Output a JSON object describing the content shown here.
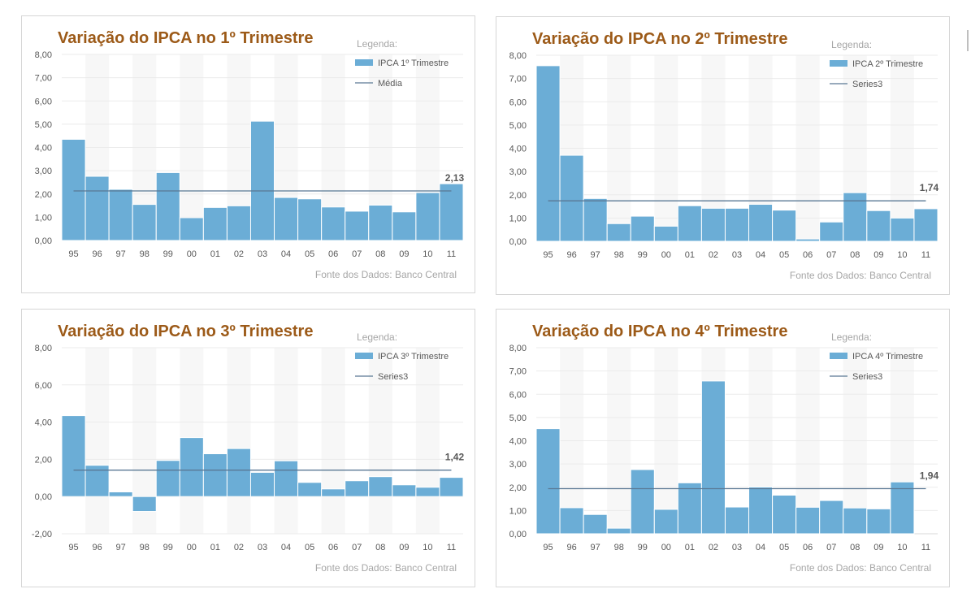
{
  "theme": {
    "title_color": "#9c5a18",
    "bar_color": "#6badd6",
    "bar_stroke": "#ffffff",
    "line_color": "#5a7894",
    "axis_text_color": "#595959",
    "legend_title_color": "#a6a6a6",
    "source_color": "#a6a6a6",
    "gridline_color": "#ebebeb",
    "band_color": "#f7f7f7"
  },
  "chart_data": [
    {
      "type": "bar",
      "title": "Variação do IPCA no 1º Trimestre",
      "legend_title": "Legenda:",
      "series_name": "IPCA 1º Trimestre",
      "line_name": "Média",
      "source": "Fonte dos Dados: Banco Central",
      "categories": [
        "95",
        "96",
        "97",
        "98",
        "99",
        "00",
        "01",
        "02",
        "03",
        "04",
        "05",
        "06",
        "07",
        "08",
        "09",
        "10",
        "11"
      ],
      "values": [
        4.35,
        2.76,
        2.2,
        1.55,
        2.92,
        0.98,
        1.42,
        1.49,
        5.13,
        1.85,
        1.79,
        1.44,
        1.26,
        1.52,
        1.23,
        2.06,
        2.44
      ],
      "average": 2.13,
      "average_label": "2,13",
      "ylim": [
        0,
        8
      ],
      "yticks": [
        0,
        1,
        2,
        3,
        4,
        5,
        6,
        7,
        8
      ],
      "ytick_labels": [
        "0,00",
        "1,00",
        "2,00",
        "3,00",
        "4,00",
        "5,00",
        "6,00",
        "7,00",
        "8,00"
      ],
      "grid": true,
      "legend_position": "top-right"
    },
    {
      "type": "bar",
      "title": "Variação do IPCA no 2º Trimestre",
      "legend_title": "Legenda:",
      "series_name": "IPCA 2º Trimestre",
      "line_name": "Series3",
      "source": "Fonte dos Dados: Banco Central",
      "categories": [
        "95",
        "96",
        "97",
        "98",
        "99",
        "00",
        "01",
        "02",
        "03",
        "04",
        "05",
        "06",
        "07",
        "08",
        "09",
        "10",
        "11"
      ],
      "values": [
        7.55,
        3.7,
        1.84,
        0.76,
        1.08,
        0.65,
        1.53,
        1.42,
        1.42,
        1.59,
        1.34,
        0.1,
        0.83,
        2.09,
        1.32,
        1.0,
        1.4
      ],
      "average": 1.74,
      "average_label": "1,74",
      "ylim": [
        0,
        8
      ],
      "yticks": [
        0,
        1,
        2,
        3,
        4,
        5,
        6,
        7,
        8
      ],
      "ytick_labels": [
        "0,00",
        "1,00",
        "2,00",
        "3,00",
        "4,00",
        "5,00",
        "6,00",
        "7,00",
        "8,00"
      ],
      "grid": true,
      "legend_position": "top-right"
    },
    {
      "type": "bar",
      "title": "Variação do IPCA no 3º Trimestre",
      "legend_title": "Legenda:",
      "series_name": "IPCA 3º Trimestre",
      "line_name": "Series3",
      "source": "Fonte dos Dados: Banco Central",
      "categories": [
        "95",
        "96",
        "97",
        "98",
        "99",
        "00",
        "01",
        "02",
        "03",
        "04",
        "05",
        "06",
        "07",
        "08",
        "09",
        "10",
        "11"
      ],
      "values": [
        4.35,
        1.68,
        0.25,
        -0.8,
        1.94,
        3.17,
        2.3,
        2.58,
        1.3,
        1.92,
        0.76,
        0.41,
        0.85,
        1.07,
        0.63,
        0.5,
        1.03
      ],
      "average": 1.42,
      "average_label": "1,42",
      "ylim": [
        -2,
        8
      ],
      "yticks": [
        -2,
        0,
        2,
        4,
        6,
        8
      ],
      "ytick_labels": [
        "-2,00",
        "0,00",
        "2,00",
        "4,00",
        "6,00",
        "8,00"
      ],
      "grid": true,
      "legend_position": "top-right"
    },
    {
      "type": "bar",
      "title": "Variação do IPCA no 4º Trimestre",
      "legend_title": "Legenda:",
      "series_name": "IPCA 4º Trimestre",
      "line_name": "Series3",
      "source": "Fonte dos Dados: Banco Central",
      "categories": [
        "95",
        "96",
        "97",
        "98",
        "99",
        "00",
        "01",
        "02",
        "03",
        "04",
        "05",
        "06",
        "07",
        "08",
        "09",
        "10",
        "11"
      ],
      "values": [
        4.52,
        1.12,
        0.83,
        0.24,
        2.76,
        1.05,
        2.19,
        6.57,
        1.15,
        2.01,
        1.66,
        1.14,
        1.43,
        1.11,
        1.07,
        2.23,
        null
      ],
      "average": 1.94,
      "average_label": "1,94",
      "ylim": [
        0,
        8
      ],
      "yticks": [
        0,
        1,
        2,
        3,
        4,
        5,
        6,
        7,
        8
      ],
      "ytick_labels": [
        "0,00",
        "1,00",
        "2,00",
        "3,00",
        "4,00",
        "5,00",
        "6,00",
        "7,00",
        "8,00"
      ],
      "grid": true,
      "legend_position": "top-right"
    }
  ]
}
